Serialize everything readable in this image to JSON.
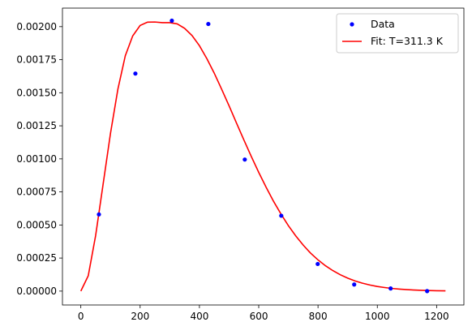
{
  "chart_data": {
    "type": "scatter",
    "title": "",
    "xlabel": "",
    "ylabel": "",
    "xlim": [
      -62,
      1292
    ],
    "ylim": [
      -0.000105,
      0.00214
    ],
    "x_ticks": [
      0,
      200,
      400,
      600,
      800,
      1000,
      1200
    ],
    "x_tick_labels": [
      "0",
      "200",
      "400",
      "600",
      "800",
      "1000",
      "1200"
    ],
    "y_ticks": [
      0,
      0.00025,
      0.0005,
      0.00075,
      0.001,
      0.00125,
      0.0015,
      0.00175,
      0.002
    ],
    "y_tick_labels": [
      "0.00000",
      "0.00025",
      "0.00050",
      "0.00075",
      "0.00100",
      "0.00125",
      "0.00150",
      "0.00175",
      "0.00200"
    ],
    "grid": false,
    "legend_position": "top-right",
    "series": [
      {
        "name": "Data",
        "kind": "scatter",
        "color": "#0000ff",
        "points": [
          [
            61,
            0.00058
          ],
          [
            184,
            0.001645
          ],
          [
            307,
            0.002045
          ],
          [
            430,
            0.00202
          ],
          [
            553,
            0.000995
          ],
          [
            676,
            0.00057
          ],
          [
            799,
            0.000205
          ],
          [
            922,
            5e-05
          ],
          [
            1045,
            2e-05
          ],
          [
            1168,
            0.0
          ]
        ]
      },
      {
        "name": "Fit: T=311.3 K",
        "kind": "line",
        "color": "#ff0000",
        "points": [
          [
            0,
            0.0
          ],
          [
            25,
            0.000116
          ],
          [
            50,
            0.000421
          ],
          [
            75,
            0.000806
          ],
          [
            100,
            0.001192
          ],
          [
            125,
            0.001527
          ],
          [
            150,
            0.00178
          ],
          [
            175,
            0.00193
          ],
          [
            200,
            0.002009
          ],
          [
            225,
            0.002034
          ],
          [
            250,
            0.002035
          ],
          [
            275,
            0.00203
          ],
          [
            300,
            0.00203
          ],
          [
            325,
            0.002021
          ],
          [
            350,
            0.001987
          ],
          [
            375,
            0.001933
          ],
          [
            400,
            0.001856
          ],
          [
            425,
            0.001758
          ],
          [
            450,
            0.001648
          ],
          [
            475,
            0.001526
          ],
          [
            500,
            0.001401
          ],
          [
            525,
            0.001271
          ],
          [
            550,
            0.001143
          ],
          [
            575,
            0.001018
          ],
          [
            600,
            0.000898
          ],
          [
            625,
            0.000785
          ],
          [
            650,
            0.000679
          ],
          [
            675,
            0.000583
          ],
          [
            700,
            0.000495
          ],
          [
            725,
            0.000417
          ],
          [
            750,
            0.000348
          ],
          [
            775,
            0.000287
          ],
          [
            800,
            0.000236
          ],
          [
            825,
            0.000192
          ],
          [
            850,
            0.000155
          ],
          [
            875,
            0.000124
          ],
          [
            900,
            9.8e-05
          ],
          [
            925,
            7.7e-05
          ],
          [
            950,
            6e-05
          ],
          [
            975,
            4.6e-05
          ],
          [
            1000,
            3.5e-05
          ],
          [
            1025,
            2.7e-05
          ],
          [
            1050,
            2e-05
          ],
          [
            1075,
            1.5e-05
          ],
          [
            1100,
            1.1e-05
          ],
          [
            1125,
            8e-06
          ],
          [
            1150,
            6e-06
          ],
          [
            1175,
            4e-06
          ],
          [
            1200,
            3e-06
          ],
          [
            1230,
            2e-06
          ]
        ]
      }
    ]
  }
}
